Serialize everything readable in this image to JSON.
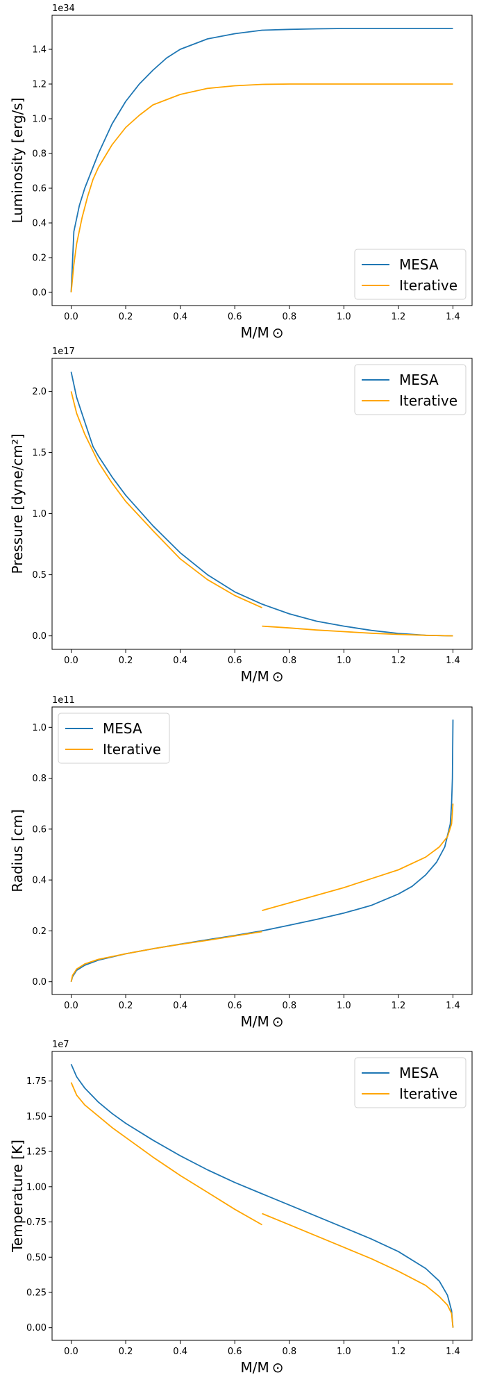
{
  "colors": {
    "mesa": "#1f77b4",
    "iterative": "#ffa500"
  },
  "chart_data": [
    {
      "type": "line",
      "xlabel": "M/M ⊙",
      "ylabel": "Luminosity [erg/s]",
      "offset_text": "1e34",
      "xlim": [
        -0.07,
        1.47
      ],
      "ylim": [
        -0.076,
        1.596
      ],
      "xticks": [
        0.0,
        0.2,
        0.4,
        0.6,
        0.8,
        1.0,
        1.2,
        1.4
      ],
      "xtick_labels": [
        "0.0",
        "0.2",
        "0.4",
        "0.6",
        "0.8",
        "1.0",
        "1.2",
        "1.4"
      ],
      "yticks": [
        0.0,
        0.2,
        0.4,
        0.6,
        0.8,
        1.0,
        1.2,
        1.4
      ],
      "ytick_labels": [
        "0.0",
        "0.2",
        "0.4",
        "0.6",
        "0.8",
        "1.0",
        "1.2",
        "1.4"
      ],
      "legend": "lower right",
      "grid": false,
      "series": [
        {
          "name": "MESA",
          "color": "#1f77b4",
          "segments": [
            [
              [
                0.0,
                0.0
              ],
              [
                0.01,
                0.35
              ],
              [
                0.03,
                0.5
              ],
              [
                0.05,
                0.6
              ],
              [
                0.08,
                0.72
              ],
              [
                0.1,
                0.8
              ],
              [
                0.15,
                0.97
              ],
              [
                0.2,
                1.1
              ],
              [
                0.25,
                1.2
              ],
              [
                0.3,
                1.28
              ],
              [
                0.35,
                1.35
              ],
              [
                0.4,
                1.4
              ],
              [
                0.5,
                1.46
              ],
              [
                0.6,
                1.49
              ],
              [
                0.7,
                1.51
              ],
              [
                0.8,
                1.515
              ],
              [
                0.9,
                1.518
              ],
              [
                1.0,
                1.52
              ],
              [
                1.2,
                1.52
              ],
              [
                1.4,
                1.52
              ]
            ]
          ]
        },
        {
          "name": "Iterative",
          "color": "#ffa500",
          "segments": [
            [
              [
                0.0,
                0.0
              ],
              [
                0.01,
                0.16
              ],
              [
                0.02,
                0.28
              ],
              [
                0.04,
                0.43
              ],
              [
                0.06,
                0.55
              ],
              [
                0.08,
                0.65
              ],
              [
                0.1,
                0.72
              ],
              [
                0.15,
                0.85
              ],
              [
                0.2,
                0.95
              ],
              [
                0.25,
                1.02
              ],
              [
                0.3,
                1.08
              ],
              [
                0.4,
                1.14
              ],
              [
                0.5,
                1.175
              ],
              [
                0.6,
                1.19
              ],
              [
                0.7,
                1.198
              ],
              [
                0.8,
                1.2
              ],
              [
                1.0,
                1.2
              ],
              [
                1.2,
                1.2
              ],
              [
                1.4,
                1.2
              ]
            ]
          ]
        }
      ]
    },
    {
      "type": "line",
      "xlabel": "M/M ⊙",
      "ylabel": "Pressure [dyne/cm²]",
      "offset_text": "1e17",
      "xlim": [
        -0.07,
        1.47
      ],
      "ylim": [
        -0.11,
        2.27
      ],
      "xticks": [
        0.0,
        0.2,
        0.4,
        0.6,
        0.8,
        1.0,
        1.2,
        1.4
      ],
      "xtick_labels": [
        "0.0",
        "0.2",
        "0.4",
        "0.6",
        "0.8",
        "1.0",
        "1.2",
        "1.4"
      ],
      "yticks": [
        0.0,
        0.5,
        1.0,
        1.5,
        2.0
      ],
      "ytick_labels": [
        "0.0",
        "0.5",
        "1.0",
        "1.5",
        "2.0"
      ],
      "legend": "upper right",
      "grid": false,
      "series": [
        {
          "name": "MESA",
          "color": "#1f77b4",
          "segments": [
            [
              [
                0.0,
                2.16
              ],
              [
                0.02,
                1.95
              ],
              [
                0.05,
                1.75
              ],
              [
                0.08,
                1.55
              ],
              [
                0.1,
                1.47
              ],
              [
                0.15,
                1.3
              ],
              [
                0.2,
                1.15
              ],
              [
                0.3,
                0.9
              ],
              [
                0.4,
                0.68
              ],
              [
                0.5,
                0.5
              ],
              [
                0.6,
                0.36
              ],
              [
                0.7,
                0.26
              ],
              [
                0.8,
                0.18
              ],
              [
                0.9,
                0.12
              ],
              [
                1.0,
                0.08
              ],
              [
                1.1,
                0.045
              ],
              [
                1.2,
                0.02
              ],
              [
                1.3,
                0.005
              ],
              [
                1.4,
                0.0
              ]
            ]
          ]
        },
        {
          "name": "Iterative",
          "color": "#ffa500",
          "segments": [
            [
              [
                0.0,
                2.0
              ],
              [
                0.02,
                1.82
              ],
              [
                0.05,
                1.65
              ],
              [
                0.1,
                1.42
              ],
              [
                0.15,
                1.25
              ],
              [
                0.2,
                1.1
              ],
              [
                0.3,
                0.86
              ],
              [
                0.4,
                0.63
              ],
              [
                0.5,
                0.46
              ],
              [
                0.6,
                0.33
              ],
              [
                0.7,
                0.23
              ]
            ],
            [
              [
                0.7,
                0.08
              ],
              [
                0.8,
                0.065
              ],
              [
                0.9,
                0.048
              ],
              [
                1.0,
                0.035
              ],
              [
                1.1,
                0.022
              ],
              [
                1.2,
                0.012
              ],
              [
                1.3,
                0.005
              ],
              [
                1.4,
                0.0
              ]
            ]
          ]
        }
      ]
    },
    {
      "type": "line",
      "xlabel": "M/M ⊙",
      "ylabel": "Radius [cm]",
      "offset_text": "1e11",
      "xlim": [
        -0.07,
        1.47
      ],
      "ylim": [
        -0.05,
        1.08
      ],
      "xticks": [
        0.0,
        0.2,
        0.4,
        0.6,
        0.8,
        1.0,
        1.2,
        1.4
      ],
      "xtick_labels": [
        "0.0",
        "0.2",
        "0.4",
        "0.6",
        "0.8",
        "1.0",
        "1.2",
        "1.4"
      ],
      "yticks": [
        0.0,
        0.2,
        0.4,
        0.6,
        0.8,
        1.0
      ],
      "ytick_labels": [
        "0.0",
        "0.2",
        "0.4",
        "0.6",
        "0.8",
        "1.0"
      ],
      "legend": "upper left",
      "grid": false,
      "series": [
        {
          "name": "MESA",
          "color": "#1f77b4",
          "segments": [
            [
              [
                0.0,
                0.0
              ],
              [
                0.005,
                0.02
              ],
              [
                0.02,
                0.045
              ],
              [
                0.05,
                0.065
              ],
              [
                0.1,
                0.085
              ],
              [
                0.2,
                0.11
              ],
              [
                0.3,
                0.13
              ],
              [
                0.4,
                0.148
              ],
              [
                0.5,
                0.165
              ],
              [
                0.6,
                0.182
              ],
              [
                0.7,
                0.2
              ],
              [
                0.8,
                0.222
              ],
              [
                0.9,
                0.245
              ],
              [
                1.0,
                0.27
              ],
              [
                1.1,
                0.3
              ],
              [
                1.2,
                0.345
              ],
              [
                1.25,
                0.375
              ],
              [
                1.3,
                0.42
              ],
              [
                1.34,
                0.47
              ],
              [
                1.37,
                0.53
              ],
              [
                1.39,
                0.62
              ],
              [
                1.395,
                0.7
              ],
              [
                1.398,
                0.8
              ],
              [
                1.4,
                1.03
              ]
            ]
          ]
        },
        {
          "name": "Iterative",
          "color": "#ffa500",
          "segments": [
            [
              [
                0.0,
                0.0
              ],
              [
                0.005,
                0.025
              ],
              [
                0.02,
                0.05
              ],
              [
                0.05,
                0.07
              ],
              [
                0.1,
                0.088
              ],
              [
                0.2,
                0.11
              ],
              [
                0.3,
                0.13
              ],
              [
                0.4,
                0.147
              ],
              [
                0.5,
                0.163
              ],
              [
                0.6,
                0.18
              ],
              [
                0.7,
                0.197
              ]
            ],
            [
              [
                0.7,
                0.28
              ],
              [
                0.8,
                0.31
              ],
              [
                0.9,
                0.34
              ],
              [
                1.0,
                0.37
              ],
              [
                1.1,
                0.405
              ],
              [
                1.2,
                0.44
              ],
              [
                1.3,
                0.49
              ],
              [
                1.35,
                0.53
              ],
              [
                1.38,
                0.57
              ],
              [
                1.395,
                0.62
              ],
              [
                1.4,
                0.7
              ]
            ]
          ]
        }
      ]
    },
    {
      "type": "line",
      "xlabel": "M/M ⊙",
      "ylabel": "Temperature [K]",
      "offset_text": "1e7",
      "xlim": [
        -0.07,
        1.47
      ],
      "ylim": [
        -0.09,
        1.96
      ],
      "xticks": [
        0.0,
        0.2,
        0.4,
        0.6,
        0.8,
        1.0,
        1.2,
        1.4
      ],
      "xtick_labels": [
        "0.0",
        "0.2",
        "0.4",
        "0.6",
        "0.8",
        "1.0",
        "1.2",
        "1.4"
      ],
      "yticks": [
        0.0,
        0.25,
        0.5,
        0.75,
        1.0,
        1.25,
        1.5,
        1.75
      ],
      "ytick_labels": [
        "0.00",
        "0.25",
        "0.50",
        "0.75",
        "1.00",
        "1.25",
        "1.50",
        "1.75"
      ],
      "legend": "upper right",
      "grid": false,
      "series": [
        {
          "name": "MESA",
          "color": "#1f77b4",
          "segments": [
            [
              [
                0.0,
                1.87
              ],
              [
                0.02,
                1.78
              ],
              [
                0.05,
                1.7
              ],
              [
                0.1,
                1.6
              ],
              [
                0.15,
                1.52
              ],
              [
                0.2,
                1.45
              ],
              [
                0.3,
                1.33
              ],
              [
                0.4,
                1.22
              ],
              [
                0.5,
                1.12
              ],
              [
                0.6,
                1.03
              ],
              [
                0.7,
                0.95
              ],
              [
                0.8,
                0.87
              ],
              [
                0.9,
                0.79
              ],
              [
                1.0,
                0.71
              ],
              [
                1.1,
                0.63
              ],
              [
                1.2,
                0.54
              ],
              [
                1.3,
                0.42
              ],
              [
                1.35,
                0.33
              ],
              [
                1.38,
                0.23
              ],
              [
                1.395,
                0.12
              ],
              [
                1.4,
                0.0
              ]
            ]
          ]
        },
        {
          "name": "Iterative",
          "color": "#ffa500",
          "segments": [
            [
              [
                0.0,
                1.74
              ],
              [
                0.02,
                1.65
              ],
              [
                0.05,
                1.58
              ],
              [
                0.1,
                1.5
              ],
              [
                0.15,
                1.42
              ],
              [
                0.2,
                1.35
              ],
              [
                0.3,
                1.21
              ],
              [
                0.4,
                1.08
              ],
              [
                0.5,
                0.96
              ],
              [
                0.6,
                0.84
              ],
              [
                0.7,
                0.73
              ]
            ],
            [
              [
                0.7,
                0.81
              ],
              [
                0.8,
                0.73
              ],
              [
                0.9,
                0.65
              ],
              [
                1.0,
                0.57
              ],
              [
                1.1,
                0.49
              ],
              [
                1.2,
                0.4
              ],
              [
                1.3,
                0.3
              ],
              [
                1.35,
                0.22
              ],
              [
                1.38,
                0.16
              ],
              [
                1.395,
                0.1
              ],
              [
                1.4,
                0.0
              ]
            ]
          ]
        }
      ]
    }
  ]
}
